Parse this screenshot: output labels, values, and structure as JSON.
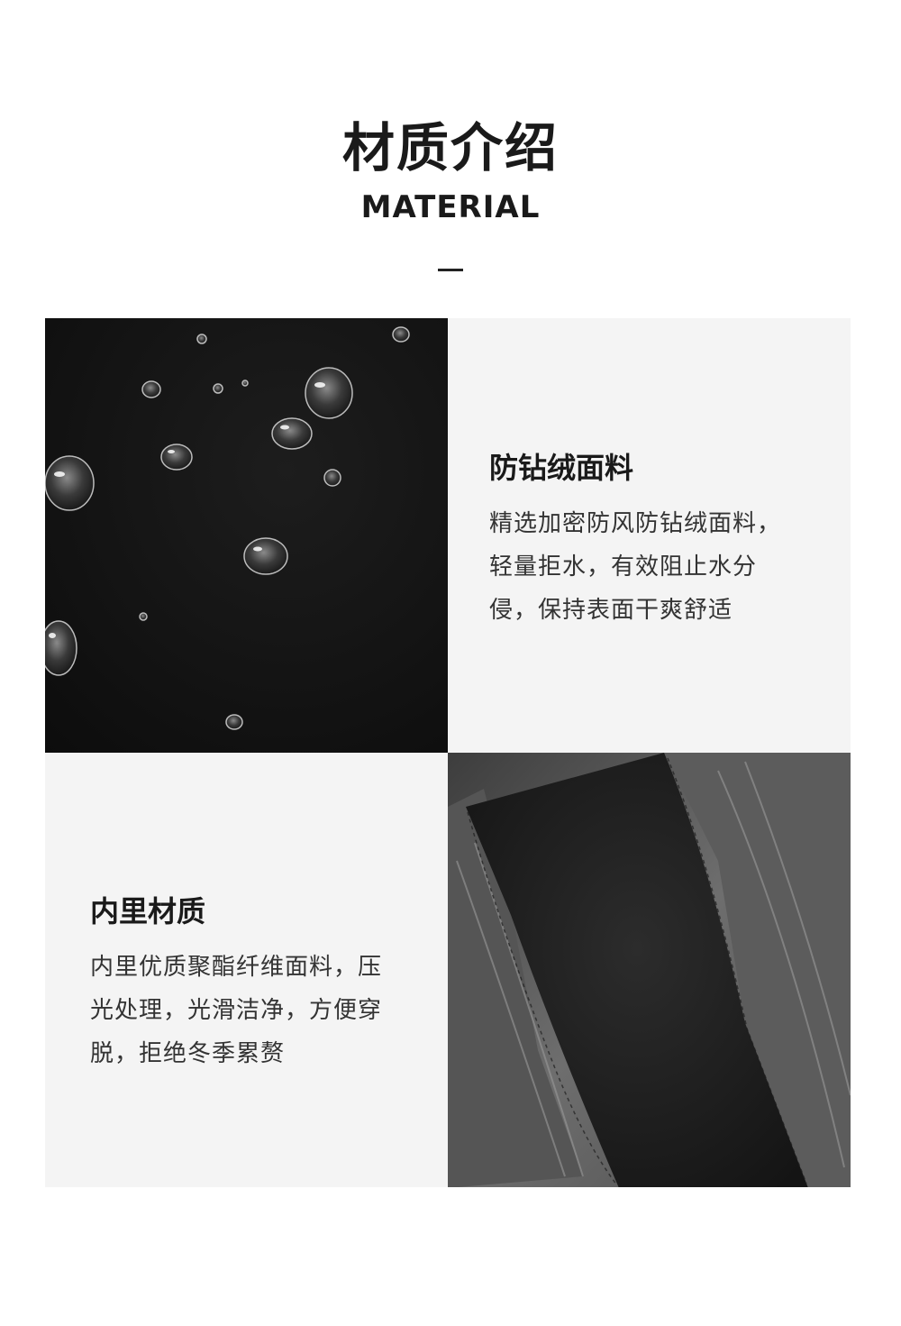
{
  "header": {
    "title": "材质介绍",
    "subtitle": "MATERIAL"
  },
  "fabric_outer": {
    "title": "防钻绒面料",
    "description": "精选加密防风防钻绒面料，轻量拒水，有效阻止水分侵，保持表面干爽舒适"
  },
  "fabric_inner": {
    "title": "内里材质",
    "description": "内里优质聚酯纤维面料，压光处理，光滑洁净，方便穿脱，拒绝冬季累赘"
  },
  "colors": {
    "panel_background": "#f4f4f4",
    "text_dark": "#1a1a1a",
    "photo_dark": "#141414"
  }
}
